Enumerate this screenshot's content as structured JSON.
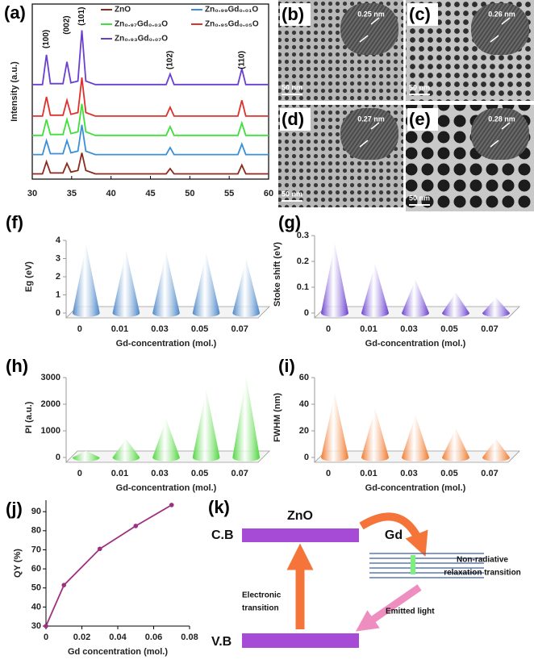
{
  "chart_data": [
    {
      "type": "line",
      "panel_label": "(a)",
      "y_label": "Intensity (a.u.)",
      "x": [
        30,
        31.3,
        31.8,
        32.3,
        33.9,
        34.4,
        34.9,
        35.8,
        36.3,
        36.8,
        38,
        47.0,
        47.5,
        48.0,
        56.1,
        56.6,
        57.1,
        60
      ],
      "xlim": [
        30,
        60
      ],
      "xticks": [
        30,
        35,
        40,
        45,
        50,
        55,
        60
      ],
      "ylim": [
        0,
        10
      ],
      "legend": "top",
      "series": [
        {
          "name": "ZnO",
          "color": "#8b2a1c",
          "values": [
            0.3,
            0.3,
            1.0,
            0.35,
            0.35,
            0.9,
            0.4,
            0.5,
            1.5,
            0.5,
            0.3,
            0.3,
            0.6,
            0.3,
            0.3,
            0.8,
            0.3,
            0.3
          ]
        },
        {
          "name": "Zn₀.₉₉Gd₀.₀₁O",
          "color": "#3b8fd6",
          "values": [
            1.4,
            1.4,
            2.2,
            1.45,
            1.45,
            2.2,
            1.5,
            1.6,
            3.1,
            1.6,
            1.4,
            1.4,
            1.8,
            1.4,
            1.4,
            2.0,
            1.4,
            1.4
          ]
        },
        {
          "name": "Zn₀.₉₇Gd₀.₀₃O",
          "color": "#3ee03a",
          "values": [
            2.5,
            2.5,
            3.4,
            2.55,
            2.55,
            3.4,
            2.6,
            2.7,
            4.3,
            2.7,
            2.5,
            2.5,
            3.0,
            2.5,
            2.5,
            3.2,
            2.5,
            2.5
          ]
        },
        {
          "name": "Zn₀.₉₅Gd₀.₀₅O",
          "color": "#e0302a",
          "values": [
            3.6,
            3.6,
            4.7,
            3.65,
            3.65,
            4.5,
            3.7,
            3.8,
            5.8,
            3.8,
            3.6,
            3.6,
            4.1,
            3.6,
            3.6,
            4.5,
            3.6,
            3.6
          ]
        },
        {
          "name": "Zn₀.₉₃Gd₀.₀₇O",
          "color": "#6a3fd0",
          "values": [
            5.4,
            5.4,
            7.1,
            5.45,
            5.45,
            6.7,
            5.5,
            5.6,
            8.5,
            5.6,
            5.4,
            5.4,
            6.0,
            5.4,
            5.4,
            6.3,
            5.4,
            5.4
          ]
        }
      ],
      "annotations": [
        {
          "text": "(100)",
          "x": 31.8,
          "y": 8.0
        },
        {
          "text": "(002)",
          "x": 34.4,
          "y": 8.8
        },
        {
          "text": "(101)",
          "x": 36.3,
          "y": 9.3
        },
        {
          "text": "(102)",
          "x": 47.5,
          "y": 6.8
        },
        {
          "text": "(110)",
          "x": 56.6,
          "y": 6.8
        }
      ]
    },
    {
      "type": "cone",
      "panel_label": "(f)",
      "y_label": "Eg (eV)",
      "x_label": "Gd-concentration (mol.)",
      "color": "#4a86c8",
      "categories": [
        "0",
        "0.01",
        "0.03",
        "0.05",
        "0.07"
      ],
      "values": [
        3.78,
        3.45,
        3.38,
        3.3,
        3.0
      ],
      "ylim": [
        0,
        4
      ],
      "yticks": [
        0,
        1,
        2,
        3,
        4
      ]
    },
    {
      "type": "cone",
      "panel_label": "(g)",
      "y_label": "Stoke shift  (eV)",
      "x_label": "Gd-concentration (mol.)",
      "color": "#6a3fd1",
      "categories": [
        "0",
        "0.01",
        "0.03",
        "0.05",
        "0.07"
      ],
      "values": [
        0.27,
        0.19,
        0.13,
        0.08,
        0.06
      ],
      "ylim": [
        0,
        0.3
      ],
      "yticks": [
        0,
        0.1,
        0.2,
        0.3
      ]
    },
    {
      "type": "cone",
      "panel_label": "(h)",
      "y_label": "PI (a.u.)",
      "x_label": "Gd-concentration (mol.)",
      "color": "#4cd63a",
      "categories": [
        "0",
        "0.01",
        "0.03",
        "0.05",
        "0.07"
      ],
      "values": [
        250,
        700,
        1450,
        2550,
        3050
      ],
      "ylim": [
        0,
        3000
      ],
      "yticks": [
        0,
        1000,
        2000,
        3000
      ]
    },
    {
      "type": "cone",
      "panel_label": "(i)",
      "y_label": "FWHM (nm)",
      "x_label": "Gd-concentration (mol.)",
      "color": "#f0782a",
      "categories": [
        "0",
        "0.01",
        "0.03",
        "0.05",
        "0.07"
      ],
      "values": [
        48,
        37,
        32,
        22,
        14
      ],
      "ylim": [
        0,
        60
      ],
      "yticks": [
        0,
        20,
        40,
        60
      ]
    },
    {
      "type": "line",
      "panel_label": "(j)",
      "y_label": "QY (%)",
      "x_label": "Gd concentration (mol.)",
      "color": "#a0307f",
      "markers": true,
      "x": [
        0,
        0.01,
        0.03,
        0.05,
        0.07
      ],
      "values": [
        30,
        51.5,
        70.5,
        82.5,
        93.5
      ],
      "xlim": [
        0,
        0.08
      ],
      "xticks": [
        0,
        0.02,
        0.04,
        0.06,
        0.08
      ],
      "ylim": [
        30,
        96
      ],
      "yticks": [
        30,
        40,
        50,
        60,
        70,
        80,
        90
      ]
    }
  ],
  "images": [
    {
      "label": "(b)",
      "spacing": "0.25 nm",
      "scale": "50 nm"
    },
    {
      "label": "(c)",
      "spacing": "0.26 nm",
      "scale": "50 nm"
    },
    {
      "label": "(d)",
      "spacing": "0.27 nm",
      "scale": "50 nm"
    },
    {
      "label": "(e)",
      "spacing": "0.28 nm",
      "scale": "50 nm"
    }
  ],
  "diagram": {
    "label": "(k)",
    "material": "ZnO",
    "dopant": "Gd",
    "conduction_band": "C.B",
    "valence_band": "V.B",
    "absorption": [
      "Electronic",
      "transition"
    ],
    "emission": "Emitted light",
    "relaxation": [
      "Non-radiative",
      "relaxation transition"
    ]
  }
}
